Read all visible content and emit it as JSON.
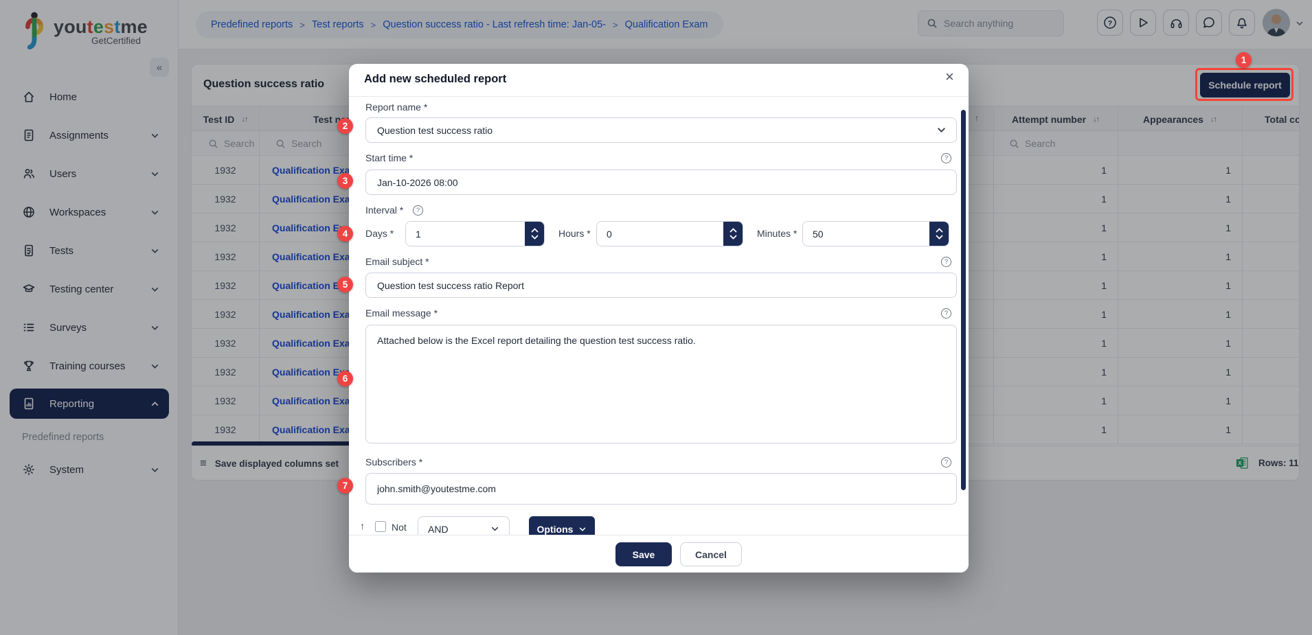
{
  "sidebar": {
    "brand": {
      "you": "you",
      "t1": "t",
      "e1": "e",
      "s": "s",
      "t2": "t",
      "me": "me",
      "sub": "GetCertified"
    },
    "items": [
      {
        "label": "Home"
      },
      {
        "label": "Assignments"
      },
      {
        "label": "Users"
      },
      {
        "label": "Workspaces"
      },
      {
        "label": "Tests"
      },
      {
        "label": "Testing center"
      },
      {
        "label": "Surveys"
      },
      {
        "label": "Training courses"
      },
      {
        "label": "Reporting"
      },
      {
        "label": "System"
      }
    ],
    "subitem": "Predefined reports"
  },
  "header": {
    "breadcrumbs": [
      {
        "label": "Predefined reports"
      },
      {
        "label": "Test reports"
      },
      {
        "label": "Question success ratio - Last refresh time: Jan-05-"
      },
      {
        "label": "Qualification Exam"
      }
    ],
    "search_placeholder": "Search anything"
  },
  "report": {
    "title": "Question success ratio",
    "schedule_button": "Schedule report",
    "columns": {
      "test_id": "Test ID",
      "test_name": "Test name",
      "attempt_number": "Attempt number",
      "appearances": "Appearances",
      "total_count": "Total co"
    },
    "search_placeholder": "Search",
    "rows": [
      {
        "test_id": "1932",
        "test_name": "Qualification Exam",
        "attempt_number": "1",
        "appearances": "1"
      },
      {
        "test_id": "1932",
        "test_name": "Qualification Exam",
        "attempt_number": "1",
        "appearances": "1"
      },
      {
        "test_id": "1932",
        "test_name": "Qualification Exam",
        "attempt_number": "1",
        "appearances": "1"
      },
      {
        "test_id": "1932",
        "test_name": "Qualification Exam",
        "attempt_number": "1",
        "appearances": "1"
      },
      {
        "test_id": "1932",
        "test_name": "Qualification Exam",
        "attempt_number": "1",
        "appearances": "1"
      },
      {
        "test_id": "1932",
        "test_name": "Qualification Exam",
        "attempt_number": "1",
        "appearances": "1"
      },
      {
        "test_id": "1932",
        "test_name": "Qualification Exam",
        "attempt_number": "1",
        "appearances": "1"
      },
      {
        "test_id": "1932",
        "test_name": "Qualification Exam",
        "attempt_number": "1",
        "appearances": "1"
      },
      {
        "test_id": "1932",
        "test_name": "Qualification Exam",
        "attempt_number": "1",
        "appearances": "1"
      },
      {
        "test_id": "1932",
        "test_name": "Qualification Exam",
        "attempt_number": "1",
        "appearances": "1"
      }
    ],
    "footer": {
      "save_columns": "Save displayed columns set",
      "rows_label": "Rows: 11"
    }
  },
  "modal": {
    "title": "Add new scheduled report",
    "close": "×",
    "report_name": {
      "label": "Report name *",
      "value": "Question test success ratio"
    },
    "start_time": {
      "label": "Start time *",
      "value": "Jan-10-2026 08:00"
    },
    "interval": {
      "label": "Interval *",
      "days_label": "Days *",
      "days": "1",
      "hours_label": "Hours *",
      "hours": "0",
      "minutes_label": "Minutes *",
      "minutes": "50"
    },
    "email_subject": {
      "label": "Email subject *",
      "value": "Question test success ratio Report"
    },
    "email_message": {
      "label": "Email message *",
      "value": "Attached below is the Excel report detailing the question test success ratio."
    },
    "subscribers": {
      "label": "Subscribers *",
      "value": "john.smith@youtestme.com"
    },
    "filter_row": {
      "not_label": "Not",
      "operator": "AND",
      "options_label": "Options"
    },
    "save_label": "Save",
    "cancel_label": "Cancel"
  },
  "annotations": {
    "badges": [
      "1",
      "2",
      "3",
      "4",
      "5",
      "6",
      "7"
    ]
  },
  "icons": {
    "sort": "↓↑",
    "up_arrow": "↑",
    "hamburger": "≡",
    "collapse": "«",
    "help": "?",
    "breadcrumb_sep": ">",
    "filter_arrow": "↑"
  },
  "colors": {
    "navy": "#1b2a55",
    "annotation_red": "#ef4444",
    "link_blue": "#1d4ed8"
  }
}
